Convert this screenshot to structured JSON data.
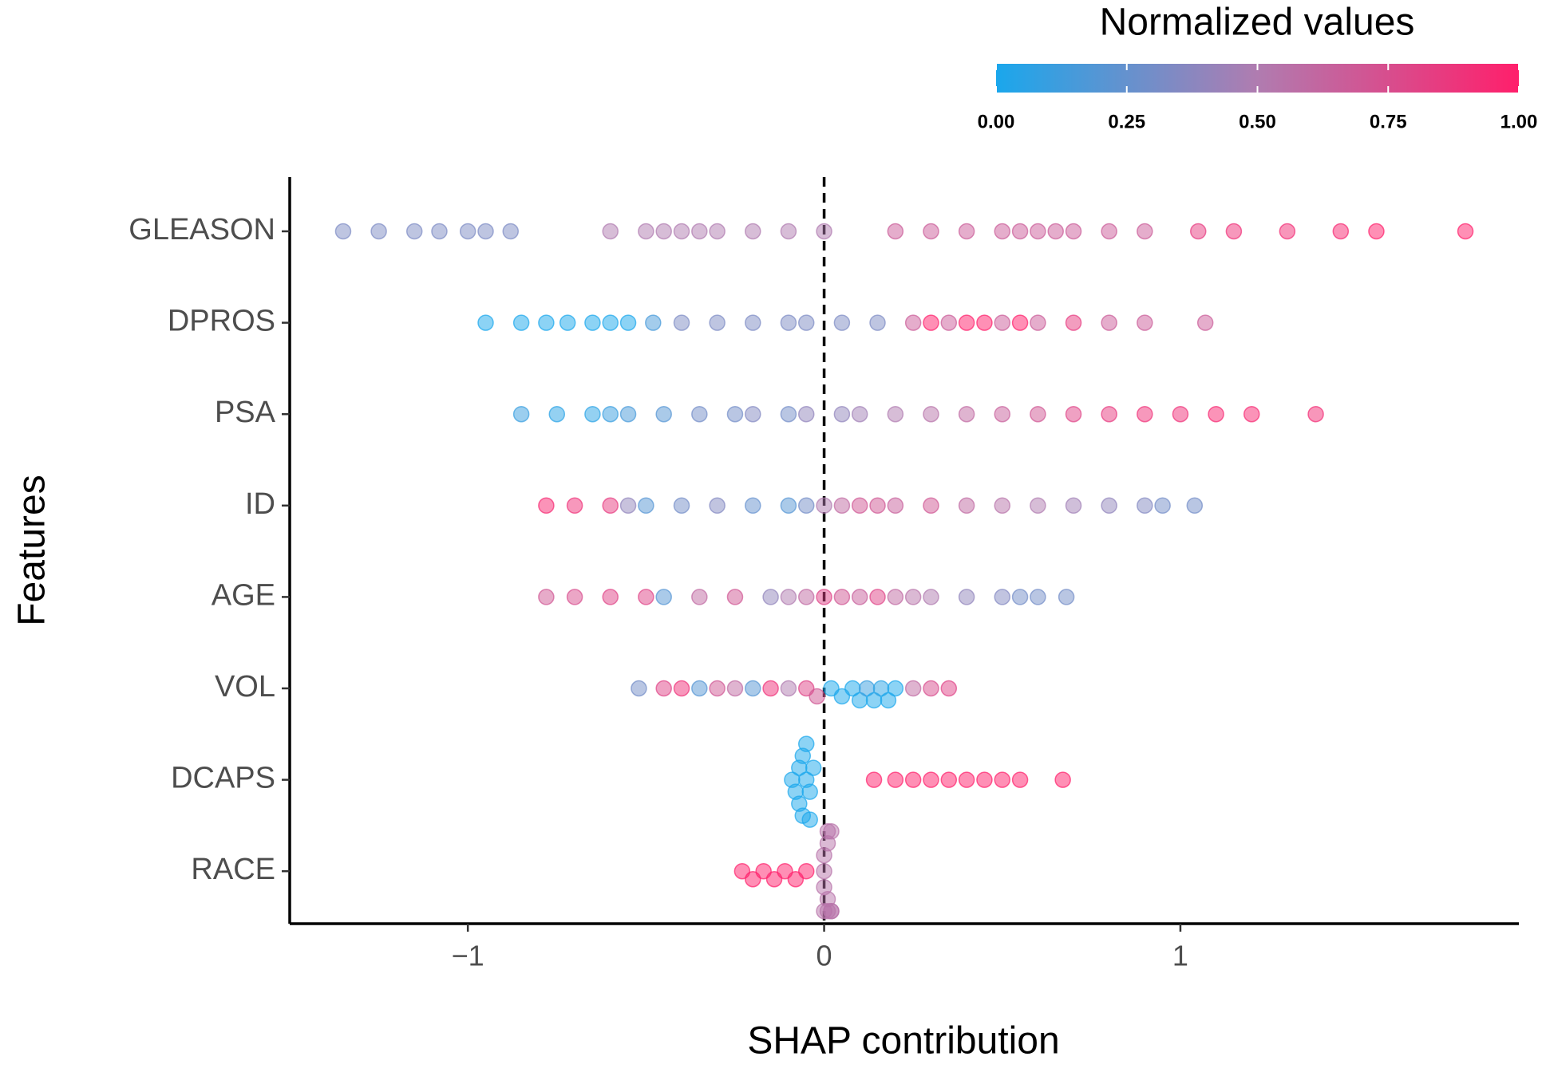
{
  "chart_data": {
    "type": "beeswarm",
    "x_label": "SHAP contribution",
    "y_label": "Features",
    "legend_title": "Normalized values",
    "colorscale": [
      "#1aa7ec",
      "#b07cb0",
      "#ff1f6b"
    ],
    "colorbar_ticks": [
      {
        "value": 0,
        "label": "0.00"
      },
      {
        "value": 0.25,
        "label": "0.25"
      },
      {
        "value": 0.5,
        "label": "0.50"
      },
      {
        "value": 0.75,
        "label": "0.75"
      },
      {
        "value": 1,
        "label": "1.00"
      }
    ],
    "xlim": [
      -1.5,
      1.95
    ],
    "xticks": [
      {
        "value": -1,
        "label": "−1"
      },
      0,
      1
    ],
    "vline": 0,
    "series": [
      {
        "name": "GLEASON",
        "values": [
          -1.35,
          -1.25,
          -1.15,
          -1.08,
          -1.0,
          -0.95,
          -0.88,
          -0.6,
          -0.5,
          -0.45,
          -0.4,
          -0.35,
          -0.3,
          -0.2,
          -0.1,
          0.0,
          0.2,
          0.3,
          0.4,
          0.5,
          0.55,
          0.6,
          0.65,
          0.7,
          0.8,
          0.9,
          1.05,
          1.15,
          1.3,
          1.45,
          1.55,
          1.8
        ],
        "normalized": [
          0.33,
          0.33,
          0.33,
          0.33,
          0.33,
          0.33,
          0.33,
          0.5,
          0.5,
          0.5,
          0.5,
          0.5,
          0.5,
          0.5,
          0.5,
          0.5,
          0.67,
          0.67,
          0.67,
          0.67,
          0.67,
          0.67,
          0.67,
          0.67,
          0.67,
          0.67,
          0.85,
          0.9,
          0.92,
          0.95,
          1,
          1
        ]
      },
      {
        "name": "DPROS",
        "values": [
          -0.95,
          -0.85,
          -0.78,
          -0.72,
          -0.65,
          -0.6,
          -0.55,
          -0.48,
          -0.4,
          -0.3,
          -0.2,
          -0.1,
          -0.05,
          0.05,
          0.15,
          0.25,
          0.3,
          0.35,
          0.4,
          0.45,
          0.5,
          0.55,
          0.6,
          0.7,
          0.8,
          0.9,
          1.07
        ],
        "normalized": [
          0,
          0,
          0,
          0,
          0,
          0,
          0,
          0.15,
          0.33,
          0.33,
          0.33,
          0.33,
          0.33,
          0.33,
          0.33,
          0.67,
          1,
          0.67,
          1,
          1,
          0.67,
          1,
          0.67,
          0.85,
          0.67,
          0.67,
          0.67
        ]
      },
      {
        "name": "PSA",
        "values": [
          -0.85,
          -0.75,
          -0.65,
          -0.6,
          -0.55,
          -0.45,
          -0.35,
          -0.25,
          -0.2,
          -0.1,
          -0.05,
          0.05,
          0.1,
          0.2,
          0.3,
          0.4,
          0.5,
          0.6,
          0.7,
          0.8,
          0.9,
          1.0,
          1.1,
          1.2,
          1.38
        ],
        "normalized": [
          0.1,
          0.05,
          0.05,
          0.1,
          0.15,
          0.2,
          0.3,
          0.3,
          0.35,
          0.3,
          0.4,
          0.4,
          0.45,
          0.5,
          0.55,
          0.6,
          0.65,
          0.7,
          0.8,
          0.85,
          0.9,
          0.9,
          0.95,
          0.95,
          0.92
        ]
      },
      {
        "name": "ID",
        "values": [
          -0.78,
          -0.7,
          -0.6,
          -0.55,
          -0.5,
          -0.4,
          -0.3,
          -0.2,
          -0.1,
          -0.05,
          0.0,
          0.05,
          0.1,
          0.15,
          0.2,
          0.3,
          0.4,
          0.5,
          0.6,
          0.7,
          0.8,
          0.9,
          0.95,
          1.04
        ],
        "normalized": [
          0.95,
          0.9,
          0.85,
          0.4,
          0.2,
          0.3,
          0.35,
          0.25,
          0.2,
          0.3,
          0.5,
          0.6,
          0.7,
          0.7,
          0.65,
          0.7,
          0.6,
          0.55,
          0.5,
          0.45,
          0.4,
          0.35,
          0.3,
          0.3
        ]
      },
      {
        "name": "AGE",
        "values": [
          -0.78,
          -0.7,
          -0.6,
          -0.5,
          -0.45,
          -0.35,
          -0.25,
          -0.15,
          -0.1,
          -0.05,
          0.0,
          0.05,
          0.1,
          0.15,
          0.2,
          0.25,
          0.3,
          0.4,
          0.5,
          0.55,
          0.6,
          0.68
        ],
        "normalized": [
          0.7,
          0.75,
          0.8,
          0.8,
          0.2,
          0.6,
          0.7,
          0.4,
          0.5,
          0.6,
          0.8,
          0.7,
          0.65,
          0.8,
          0.6,
          0.55,
          0.5,
          0.4,
          0.35,
          0.3,
          0.3,
          0.3
        ]
      },
      {
        "name": "VOL",
        "values": [
          -0.52,
          -0.45,
          -0.4,
          -0.35,
          -0.3,
          -0.25,
          -0.2,
          -0.15,
          -0.1,
          -0.05,
          -0.02,
          0.02,
          0.05,
          0.08,
          0.1,
          0.12,
          0.14,
          0.16,
          0.18,
          0.2,
          0.25,
          0.3,
          0.35
        ],
        "normalized": [
          0.3,
          0.8,
          0.9,
          0.2,
          0.7,
          0.6,
          0.2,
          0.9,
          0.5,
          0.8,
          0.7,
          0,
          0,
          0,
          0,
          0.1,
          0,
          0.05,
          0,
          0,
          0.6,
          0.75,
          0.8
        ]
      },
      {
        "name": "DCAPS",
        "values": [
          -0.09,
          -0.08,
          -0.07,
          -0.07,
          -0.06,
          -0.06,
          -0.05,
          -0.05,
          -0.04,
          -0.04,
          -0.03,
          0.14,
          0.2,
          0.25,
          0.3,
          0.35,
          0.4,
          0.45,
          0.5,
          0.55,
          0.67
        ],
        "normalized": [
          0,
          0,
          0,
          0,
          0,
          0,
          0,
          0,
          0,
          0,
          0,
          1,
          1,
          1,
          1,
          1,
          1,
          1,
          1,
          1,
          1
        ]
      },
      {
        "name": "RACE",
        "values": [
          -0.23,
          -0.2,
          -0.17,
          -0.14,
          -0.11,
          -0.08,
          -0.05,
          0.0,
          0.0,
          0.0,
          0.01,
          0.01,
          0.01,
          0.01,
          0.02,
          0.02,
          0.02,
          0.0
        ],
        "normalized": [
          1,
          1,
          1,
          1,
          1,
          1,
          1,
          0.55,
          0.55,
          0.55,
          0.55,
          0.55,
          0.55,
          0.55,
          0.55,
          0.55,
          0.55,
          0.55
        ]
      }
    ]
  }
}
